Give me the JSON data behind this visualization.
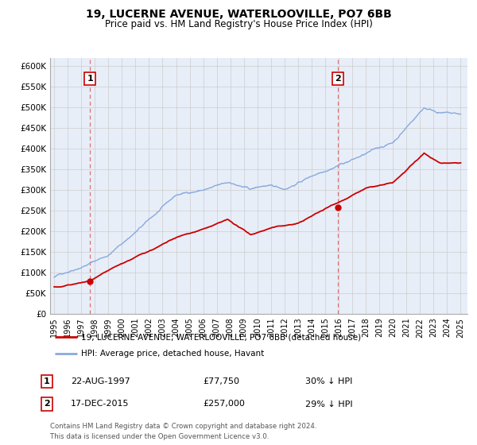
{
  "title": "19, LUCERNE AVENUE, WATERLOOVILLE, PO7 6BB",
  "subtitle": "Price paid vs. HM Land Registry's House Price Index (HPI)",
  "xlim": [
    1994.7,
    2025.5
  ],
  "ylim": [
    0,
    620000
  ],
  "yticks": [
    0,
    50000,
    100000,
    150000,
    200000,
    250000,
    300000,
    350000,
    400000,
    450000,
    500000,
    550000,
    600000
  ],
  "ytick_labels": [
    "£0",
    "£50K",
    "£100K",
    "£150K",
    "£200K",
    "£250K",
    "£300K",
    "£350K",
    "£400K",
    "£450K",
    "£500K",
    "£550K",
    "£600K"
  ],
  "xtick_positions": [
    1995,
    1996,
    1997,
    1998,
    1999,
    2000,
    2001,
    2002,
    2003,
    2004,
    2005,
    2006,
    2007,
    2008,
    2009,
    2010,
    2011,
    2012,
    2013,
    2014,
    2015,
    2016,
    2017,
    2018,
    2019,
    2020,
    2021,
    2022,
    2023,
    2024,
    2025
  ],
  "xtick_labels": [
    "1995",
    "1996",
    "1997",
    "1998",
    "1999",
    "2000",
    "2001",
    "2002",
    "2003",
    "2004",
    "2005",
    "2006",
    "2007",
    "2008",
    "2009",
    "2010",
    "2011",
    "2012",
    "2013",
    "2014",
    "2015",
    "2016",
    "2017",
    "2018",
    "2019",
    "2020",
    "2021",
    "2022",
    "2023",
    "2024",
    "2025"
  ],
  "sale1_x": 1997.644,
  "sale1_y": 77750,
  "sale2_x": 2015.962,
  "sale2_y": 257000,
  "legend_line1_color": "#cc0000",
  "legend_line1_label": "19, LUCERNE AVENUE, WATERLOOVILLE, PO7 6BB (detached house)",
  "legend_line2_color": "#88aadd",
  "legend_line2_label": "HPI: Average price, detached house, Havant",
  "table_row1_num": "1",
  "table_row1_date": "22-AUG-1997",
  "table_row1_price": "£77,750",
  "table_row1_hpi": "30% ↓ HPI",
  "table_row2_num": "2",
  "table_row2_date": "17-DEC-2015",
  "table_row2_price": "£257,000",
  "table_row2_hpi": "29% ↓ HPI",
  "footer_line1": "Contains HM Land Registry data © Crown copyright and database right 2024.",
  "footer_line2": "This data is licensed under the Open Government Licence v3.0.",
  "background_color": "#ffffff",
  "grid_color": "#cccccc",
  "plot_bg_color": "#e8eef8",
  "vline1_color": "#dd6666",
  "vline2_color": "#dd6666",
  "marker_color": "#cc0000",
  "label_box_color": "#cc0000"
}
